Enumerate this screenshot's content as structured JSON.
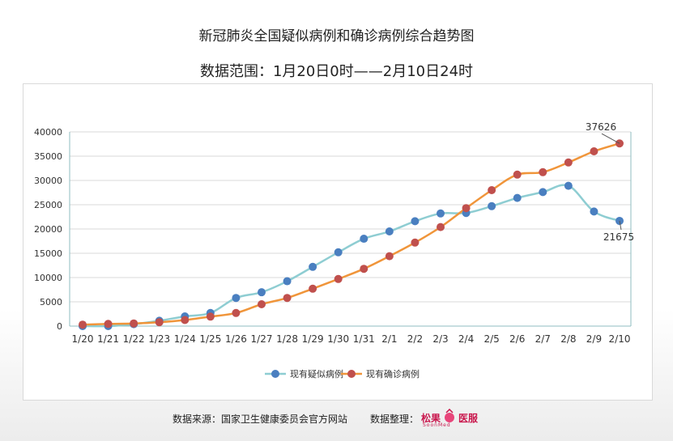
{
  "title": "新冠肺炎全国疑似病例和确诊病例综合趋势图",
  "subtitle": "数据范围：1月20日0时——2月10日24时",
  "footer": {
    "source": "数据来源：国家卫生健康委员会官方网站",
    "organizer_label": "数据整理：",
    "logo_left": "松果",
    "logo_right": "医服",
    "logo_sub": "SoonMed"
  },
  "chart_data": {
    "type": "line",
    "categories": [
      "1/20",
      "1/21",
      "1/22",
      "1/23",
      "1/24",
      "1/25",
      "1/26",
      "1/27",
      "1/28",
      "1/29",
      "1/30",
      "1/31",
      "2/1",
      "2/2",
      "2/3",
      "2/4",
      "2/5",
      "2/6",
      "2/7",
      "2/8",
      "2/9",
      "2/10"
    ],
    "ylim": [
      0,
      40000
    ],
    "yticks": [
      0,
      5000,
      10000,
      15000,
      20000,
      25000,
      30000,
      35000,
      40000
    ],
    "grid": true,
    "legend_position": "bottom",
    "series": [
      {
        "name": "现有疑似病例",
        "line_color": "#8ecdd2",
        "marker_color": "#4a7fc0",
        "values": [
          0,
          0,
          400,
          1100,
          2000,
          2700,
          5800,
          6970,
          9240,
          12200,
          15200,
          17990,
          19500,
          21600,
          23200,
          23300,
          24700,
          26400,
          27600,
          28900,
          23600,
          21675
        ]
      },
      {
        "name": "现有确诊病例",
        "line_color": "#f0953a",
        "marker_color": "#c0504d",
        "values": [
          300,
          450,
          550,
          800,
          1250,
          1950,
          2700,
          4500,
          5800,
          7700,
          9700,
          11800,
          14400,
          17200,
          20400,
          24300,
          28000,
          31200,
          31700,
          33700,
          36000,
          37626
        ]
      }
    ],
    "annotations": [
      {
        "series": 1,
        "index": 21,
        "text": "37626"
      },
      {
        "series": 0,
        "index": 21,
        "text": "21675"
      }
    ]
  }
}
